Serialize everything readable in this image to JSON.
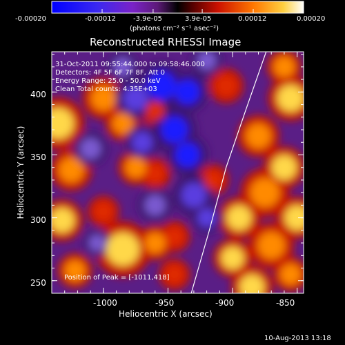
{
  "chart_data": {
    "type": "heatmap",
    "title": "Reconstructed RHESSI Image",
    "xlabel": "Heliocentric X (arcsec)",
    "ylabel": "Heliocentric Y (arcsec)",
    "xlim": [
      -1040,
      -845
    ],
    "ylim": [
      240,
      432
    ],
    "xticks": [
      "-1000",
      "-950",
      "-900",
      "-850"
    ],
    "xtick_values": [
      -1000,
      -950,
      -900,
      -850
    ],
    "yticks": [
      "250",
      "300",
      "350",
      "400"
    ],
    "ytick_values": [
      250,
      300,
      350,
      400
    ],
    "colorbar": {
      "ticks": [
        "-0.00020",
        "-0.00012",
        "-3.9e-05",
        "3.9e-05",
        "0.00012",
        "0.00020"
      ],
      "tick_values": [
        -0.0002,
        -0.00012,
        -3.9e-05,
        3.9e-05,
        0.00012,
        0.0002
      ],
      "unit_label": "(photons cm⁻² s⁻¹ asec⁻²)",
      "range": [
        -0.0002,
        0.0002
      ]
    },
    "annotations": {
      "time": "31-Oct-2011 09:55:44.000 to 09:58:46.000",
      "detectors": "Detectors: 4F 5F 6F 7F 8F, Att 0",
      "energy": "Energy Range: 25.0 - 50.0 keV",
      "method": "Clean     Total counts: 4.35E+03",
      "peak": "Position of Peak = [-1011,418]"
    },
    "limb": [
      [
        -932,
        240
      ],
      [
        -918,
        290
      ],
      [
        -905,
        340
      ],
      [
        -890,
        385
      ],
      [
        -874,
        432
      ]
    ],
    "blobs": [
      {
        "x": -1035,
        "y": 375,
        "r": 15,
        "v": 0.9
      },
      {
        "x": -1000,
        "y": 395,
        "r": 12,
        "v": 0.7
      },
      {
        "x": -985,
        "y": 375,
        "r": 10,
        "v": 0.75
      },
      {
        "x": -1025,
        "y": 338,
        "r": 12,
        "v": 0.8
      },
      {
        "x": -975,
        "y": 340,
        "r": 10,
        "v": 0.7
      },
      {
        "x": -1032,
        "y": 298,
        "r": 12,
        "v": 0.85
      },
      {
        "x": -1000,
        "y": 305,
        "r": 9,
        "v": 0.55
      },
      {
        "x": -985,
        "y": 275,
        "r": 16,
        "v": 0.95
      },
      {
        "x": -960,
        "y": 280,
        "r": 10,
        "v": 0.75
      },
      {
        "x": -945,
        "y": 285,
        "r": 9,
        "v": 0.65
      },
      {
        "x": -1022,
        "y": 258,
        "r": 10,
        "v": 0.7
      },
      {
        "x": -945,
        "y": 255,
        "r": 9,
        "v": 0.6
      },
      {
        "x": -960,
        "y": 335,
        "r": 9,
        "v": 0.5
      },
      {
        "x": -960,
        "y": 385,
        "r": 9,
        "v": 0.5
      },
      {
        "x": -855,
        "y": 395,
        "r": 13,
        "v": 0.85
      },
      {
        "x": -880,
        "y": 365,
        "r": 12,
        "v": 0.8
      },
      {
        "x": -860,
        "y": 340,
        "r": 12,
        "v": 0.9
      },
      {
        "x": -875,
        "y": 320,
        "r": 14,
        "v": 0.8
      },
      {
        "x": -895,
        "y": 300,
        "r": 12,
        "v": 0.95
      },
      {
        "x": -850,
        "y": 300,
        "r": 12,
        "v": 0.85
      },
      {
        "x": -870,
        "y": 278,
        "r": 13,
        "v": 0.8
      },
      {
        "x": -900,
        "y": 268,
        "r": 11,
        "v": 0.9
      },
      {
        "x": -885,
        "y": 245,
        "r": 12,
        "v": 0.85
      },
      {
        "x": -855,
        "y": 255,
        "r": 10,
        "v": 0.75
      },
      {
        "x": -915,
        "y": 330,
        "r": 9,
        "v": 0.6
      },
      {
        "x": -860,
        "y": 420,
        "r": 10,
        "v": 0.8
      },
      {
        "x": -905,
        "y": 405,
        "r": 10,
        "v": 0.55
      },
      {
        "x": -975,
        "y": 395,
        "r": 12,
        "v": -0.75
      },
      {
        "x": -955,
        "y": 405,
        "r": 14,
        "v": -0.85
      },
      {
        "x": -935,
        "y": 400,
        "r": 12,
        "v": -0.8
      },
      {
        "x": -945,
        "y": 370,
        "r": 13,
        "v": -0.8
      },
      {
        "x": -935,
        "y": 350,
        "r": 12,
        "v": -0.85
      },
      {
        "x": -970,
        "y": 360,
        "r": 10,
        "v": -0.65
      },
      {
        "x": -930,
        "y": 318,
        "r": 12,
        "v": -0.75
      },
      {
        "x": -960,
        "y": 310,
        "r": 10,
        "v": -0.55
      },
      {
        "x": -1010,
        "y": 355,
        "r": 10,
        "v": -0.5
      },
      {
        "x": -920,
        "y": 300,
        "r": 9,
        "v": -0.6
      },
      {
        "x": -985,
        "y": 420,
        "r": 9,
        "v": -0.45
      },
      {
        "x": -1005,
        "y": 280,
        "r": 8,
        "v": -0.4
      },
      {
        "x": -920,
        "y": 425,
        "r": 9,
        "v": -0.5
      }
    ]
  },
  "footer": {
    "date": "10-Aug-2013 13:18"
  }
}
